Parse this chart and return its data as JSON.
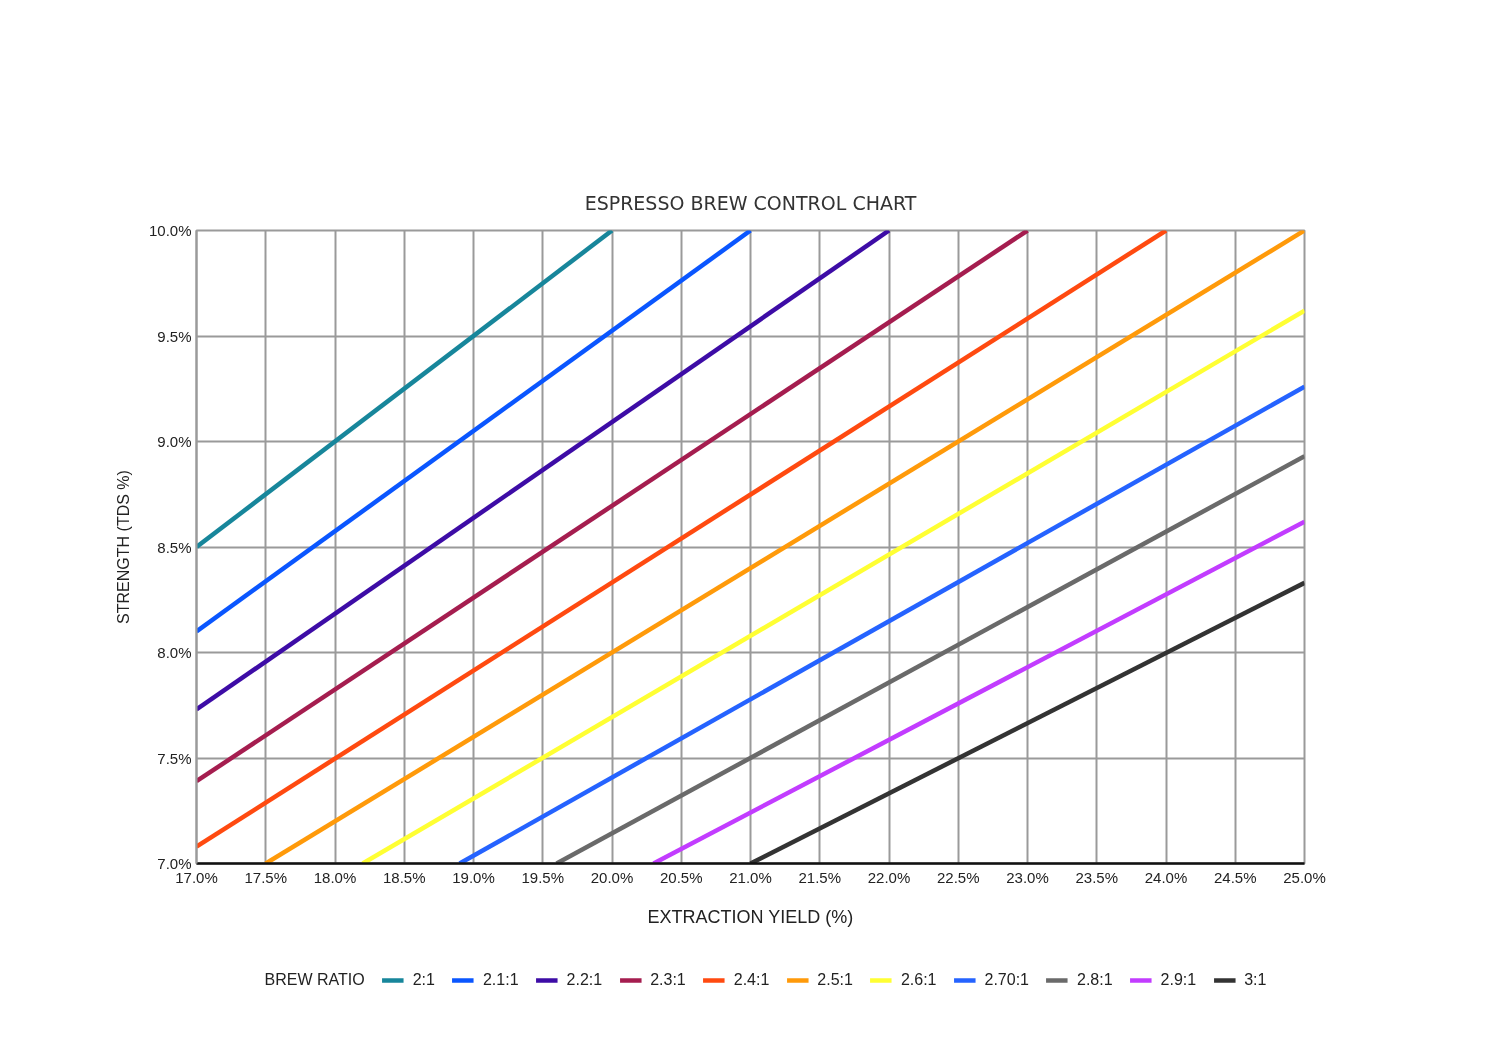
{
  "chart_data": {
    "type": "line",
    "title": "ESPRESSO BREW CONTROL CHART",
    "xlabel": "EXTRACTION YIELD (%)",
    "ylabel": "STRENGTH (TDS %)",
    "legend_title": "BREW RATIO",
    "xlim": [
      17.0,
      25.0
    ],
    "ylim": [
      7.0,
      10.0
    ],
    "xticks": [
      {
        "value": 17.0,
        "label": "17.0%"
      },
      {
        "value": 17.5,
        "label": "17.5%"
      },
      {
        "value": 18.0,
        "label": "18.0%"
      },
      {
        "value": 18.5,
        "label": "18.5%"
      },
      {
        "value": 19.0,
        "label": "19.0%"
      },
      {
        "value": 19.5,
        "label": "19.5%"
      },
      {
        "value": 20.0,
        "label": "20.0%"
      },
      {
        "value": 20.5,
        "label": "20.5%"
      },
      {
        "value": 21.0,
        "label": "21.0%"
      },
      {
        "value": 21.5,
        "label": "21.5%"
      },
      {
        "value": 22.0,
        "label": "22.0%"
      },
      {
        "value": 22.5,
        "label": "22.5%"
      },
      {
        "value": 23.0,
        "label": "23.0%"
      },
      {
        "value": 23.5,
        "label": "23.5%"
      },
      {
        "value": 24.0,
        "label": "24.0%"
      },
      {
        "value": 24.5,
        "label": "24.5%"
      },
      {
        "value": 25.0,
        "label": "25.0%"
      }
    ],
    "yticks": [
      {
        "value": 7.0,
        "label": "7.0%"
      },
      {
        "value": 7.5,
        "label": "7.5%"
      },
      {
        "value": 8.0,
        "label": "8.0%"
      },
      {
        "value": 8.5,
        "label": "8.5%"
      },
      {
        "value": 9.0,
        "label": "9.0%"
      },
      {
        "value": 9.5,
        "label": "9.5%"
      },
      {
        "value": 10.0,
        "label": "10.0%"
      }
    ],
    "grid": true,
    "legend": "bottom",
    "line_style": "solid",
    "series": [
      {
        "name": "2:1",
        "color": "#17869b",
        "x": [
          17.0,
          20.0
        ],
        "values": [
          8.5,
          10.0
        ]
      },
      {
        "name": "2.1:1",
        "color": "#0a56ff",
        "x": [
          17.0,
          21.0
        ],
        "values": [
          8.1,
          10.0
        ]
      },
      {
        "name": "2.2:1",
        "color": "#3d0ca6",
        "x": [
          17.0,
          22.0
        ],
        "values": [
          7.73,
          10.0
        ]
      },
      {
        "name": "2.3:1",
        "color": "#a51d4f",
        "x": [
          17.0,
          23.0
        ],
        "values": [
          7.39,
          10.0
        ]
      },
      {
        "name": "2.4:1",
        "color": "#ff4a10",
        "x": [
          17.0,
          24.0
        ],
        "values": [
          7.08,
          10.0
        ]
      },
      {
        "name": "2.5:1",
        "color": "#ff9a0a",
        "x": [
          17.5,
          25.0
        ],
        "values": [
          7.0,
          10.0
        ]
      },
      {
        "name": "2.6:1",
        "color": "#ffff33",
        "x": [
          18.2,
          25.0
        ],
        "values": [
          7.0,
          9.62
        ]
      },
      {
        "name": "2.70:1",
        "color": "#2563ff",
        "x": [
          18.9,
          25.0
        ],
        "values": [
          7.0,
          9.26
        ]
      },
      {
        "name": "2.8:1",
        "color": "#6a6a6a",
        "x": [
          19.6,
          25.0
        ],
        "values": [
          7.0,
          8.93
        ]
      },
      {
        "name": "2.9:1",
        "color": "#c23cff",
        "x": [
          20.3,
          25.0
        ],
        "values": [
          7.0,
          8.62
        ]
      },
      {
        "name": "3:1",
        "color": "#333333",
        "x": [
          21.0,
          25.0
        ],
        "values": [
          7.0,
          8.33
        ]
      }
    ]
  }
}
